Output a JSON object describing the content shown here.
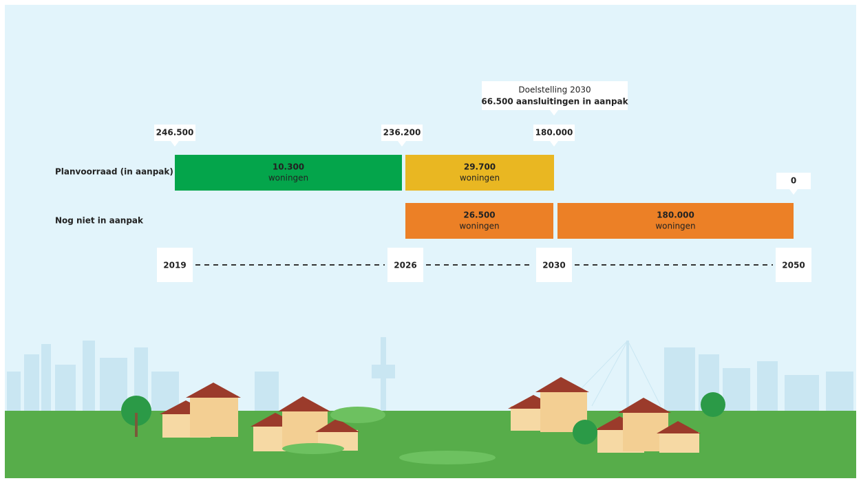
{
  "rows": [
    {
      "label": "Planvoorraad (in aanpak)"
    },
    {
      "label": "Nog niet in aanpak"
    }
  ],
  "markers": [
    "246.500",
    "236.200",
    "180.000",
    "0"
  ],
  "goal": {
    "title": "Doelstelling 2030",
    "text": "66.500 aansluitingen in aanpak"
  },
  "bars": [
    {
      "value": "10.300",
      "unit": "woningen"
    },
    {
      "value": "29.700",
      "unit": "woningen"
    },
    {
      "value": "26.500",
      "unit": "woningen"
    },
    {
      "value": "180.000",
      "unit": "woningen"
    }
  ],
  "years": [
    "2019",
    "2026",
    "2030",
    "2050"
  ]
}
